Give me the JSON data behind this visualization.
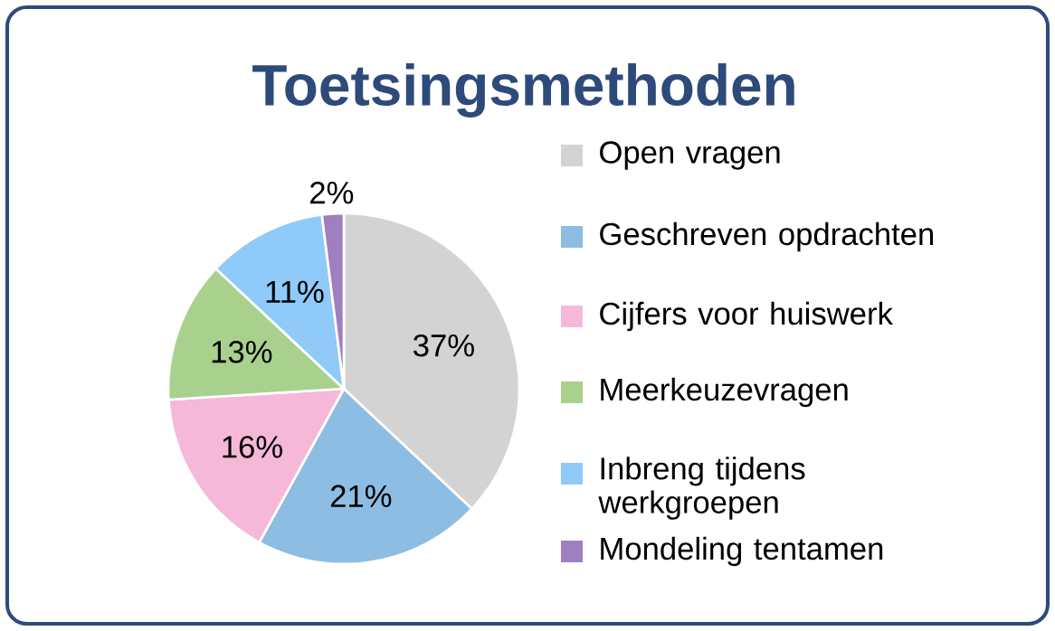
{
  "chart_data": {
    "type": "pie",
    "title": "Toetsingsmethoden",
    "categories": [
      "Open vragen",
      "Geschreven opdrachten",
      "Cijfers voor huiswerk",
      "Meerkeuzevragen",
      "Inbreng tijdens werkgroepen",
      "Mondeling tentamen"
    ],
    "values": [
      37,
      21,
      16,
      13,
      11,
      2
    ],
    "value_labels": [
      "37%",
      "21%",
      "16%",
      "13%",
      "11%",
      "2%"
    ],
    "colors": [
      "#d3d3d3",
      "#8dbde3",
      "#f6b8d8",
      "#a9d18e",
      "#8fcaf9",
      "#a07fc0"
    ],
    "legend": "right"
  }
}
